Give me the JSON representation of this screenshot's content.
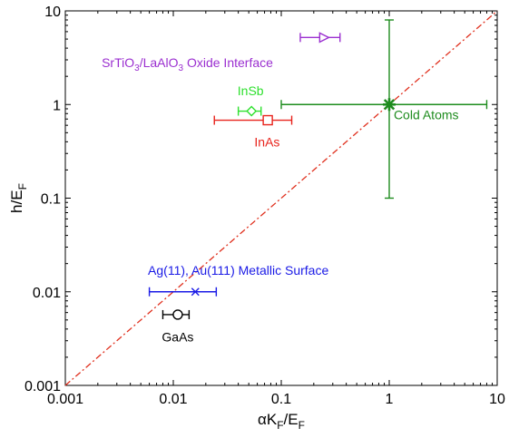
{
  "chart_data": {
    "type": "scatter",
    "x_scale": "log",
    "y_scale": "log",
    "xlim": [
      0.001,
      10
    ],
    "ylim": [
      0.001,
      10
    ],
    "x_ticks": [
      "0.001",
      "0.01",
      "0.1",
      "1",
      "10"
    ],
    "y_ticks": [
      "0.001",
      "0.01",
      "0.1",
      "1",
      "10"
    ],
    "xlabel": {
      "main": "αK",
      "sub1": "F",
      "mid": "/E",
      "sub2": "F"
    },
    "ylabel": {
      "main": "h/E",
      "sub": "F"
    },
    "grid": false,
    "reference_line": {
      "style": "dash-dot",
      "color": "#e0301e",
      "x": [
        0.001,
        10
      ],
      "y": [
        0.001,
        10
      ]
    },
    "points": [
      {
        "id": "sto",
        "label_parts": [
          {
            "t": "SrTiO"
          },
          {
            "t": "3",
            "sub": true
          },
          {
            "t": "/LaAlO"
          },
          {
            "t": "3",
            "sub": true
          },
          {
            "t": " Oxide Interface"
          }
        ],
        "x": 0.25,
        "y": 5.2,
        "xerr": [
          0.15,
          0.35
        ],
        "marker": "triangle-right",
        "color": "#9b2fd0",
        "label_x": 0.0135,
        "label_y": 2.8
      },
      {
        "id": "insb",
        "label_parts": [
          {
            "t": "InSb"
          }
        ],
        "x": 0.053,
        "y": 0.85,
        "xerr": [
          0.04,
          0.065
        ],
        "marker": "diamond",
        "color": "#2ee02e",
        "label_x": 0.052,
        "label_y": 1.4
      },
      {
        "id": "inas",
        "label_parts": [
          {
            "t": "InAs"
          }
        ],
        "x": 0.075,
        "y": 0.68,
        "xerr": [
          0.024,
          0.125
        ],
        "marker": "square",
        "color": "#e8231c",
        "label_x": 0.074,
        "label_y": 0.4
      },
      {
        "id": "cold",
        "label_parts": [
          {
            "t": "Cold Atoms"
          }
        ],
        "x": 1.0,
        "y": 1.0,
        "xerr": [
          0.1,
          8.0
        ],
        "yerr": [
          0.1,
          8.0
        ],
        "marker": "asterisk",
        "color": "#1e8c1e",
        "label_x": 2.2,
        "label_y": 0.78
      },
      {
        "id": "ag",
        "label_parts": [
          {
            "t": "Ag(11), Au(111) Metallic Surface"
          }
        ],
        "x": 0.016,
        "y": 0.01,
        "xerr": [
          0.006,
          0.025
        ],
        "marker": "x",
        "color": "#1a1ae6",
        "label_x": 0.04,
        "label_y": 0.017
      },
      {
        "id": "gaas",
        "label_parts": [
          {
            "t": "GaAs"
          }
        ],
        "x": 0.011,
        "y": 0.0057,
        "xerr": [
          0.008,
          0.014
        ],
        "marker": "circle",
        "color": "#000000",
        "label_x": 0.011,
        "label_y": 0.0033
      }
    ]
  }
}
